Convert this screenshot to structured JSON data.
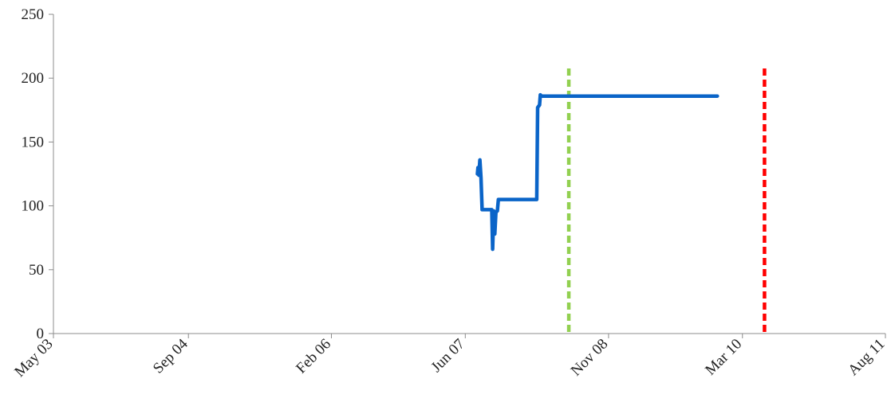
{
  "chart_data": {
    "type": "line",
    "title": "",
    "xlabel": "",
    "ylabel": "",
    "ylim": [
      0,
      250
    ],
    "yticks": [
      0,
      50,
      100,
      150,
      200,
      250
    ],
    "xlim": [
      "2003-05-01",
      "2011-08-01"
    ],
    "xticks": [
      {
        "date": "2003-05-01",
        "label": "May 03"
      },
      {
        "date": "2004-09-01",
        "label": "Sep 04"
      },
      {
        "date": "2006-02-01",
        "label": "Feb 06"
      },
      {
        "date": "2007-06-01",
        "label": "Jun 07"
      },
      {
        "date": "2008-11-01",
        "label": "Nov 08"
      },
      {
        "date": "2010-03-01",
        "label": "Mar 10"
      },
      {
        "date": "2011-08-01",
        "label": "Aug 11"
      }
    ],
    "grid": false,
    "legend": "none",
    "series": [
      {
        "color": "#0a64c8",
        "points": [
          {
            "x": "2007-07-15",
            "y": 125
          },
          {
            "x": "2007-07-17",
            "y": 130
          },
          {
            "x": "2007-07-20",
            "y": 124
          },
          {
            "x": "2007-07-24",
            "y": 136
          },
          {
            "x": "2007-07-28",
            "y": 122
          },
          {
            "x": "2007-08-01",
            "y": 97
          },
          {
            "x": "2007-09-05",
            "y": 97
          },
          {
            "x": "2007-09-08",
            "y": 66
          },
          {
            "x": "2007-09-12",
            "y": 96
          },
          {
            "x": "2007-09-16",
            "y": 78
          },
          {
            "x": "2007-09-20",
            "y": 95
          },
          {
            "x": "2007-09-25",
            "y": 96
          },
          {
            "x": "2007-09-29",
            "y": 105
          },
          {
            "x": "2008-02-15",
            "y": 105
          },
          {
            "x": "2008-02-18",
            "y": 177
          },
          {
            "x": "2008-02-25",
            "y": 179
          },
          {
            "x": "2008-02-28",
            "y": 187
          },
          {
            "x": "2008-03-03",
            "y": 186
          },
          {
            "x": "2009-11-30",
            "y": 186
          }
        ]
      }
    ],
    "vertical_lines": [
      {
        "x": "2008-06-10",
        "color": "#92d050",
        "style": "dashed"
      },
      {
        "x": "2010-05-20",
        "color": "#ff0000",
        "style": "dashed"
      }
    ]
  }
}
